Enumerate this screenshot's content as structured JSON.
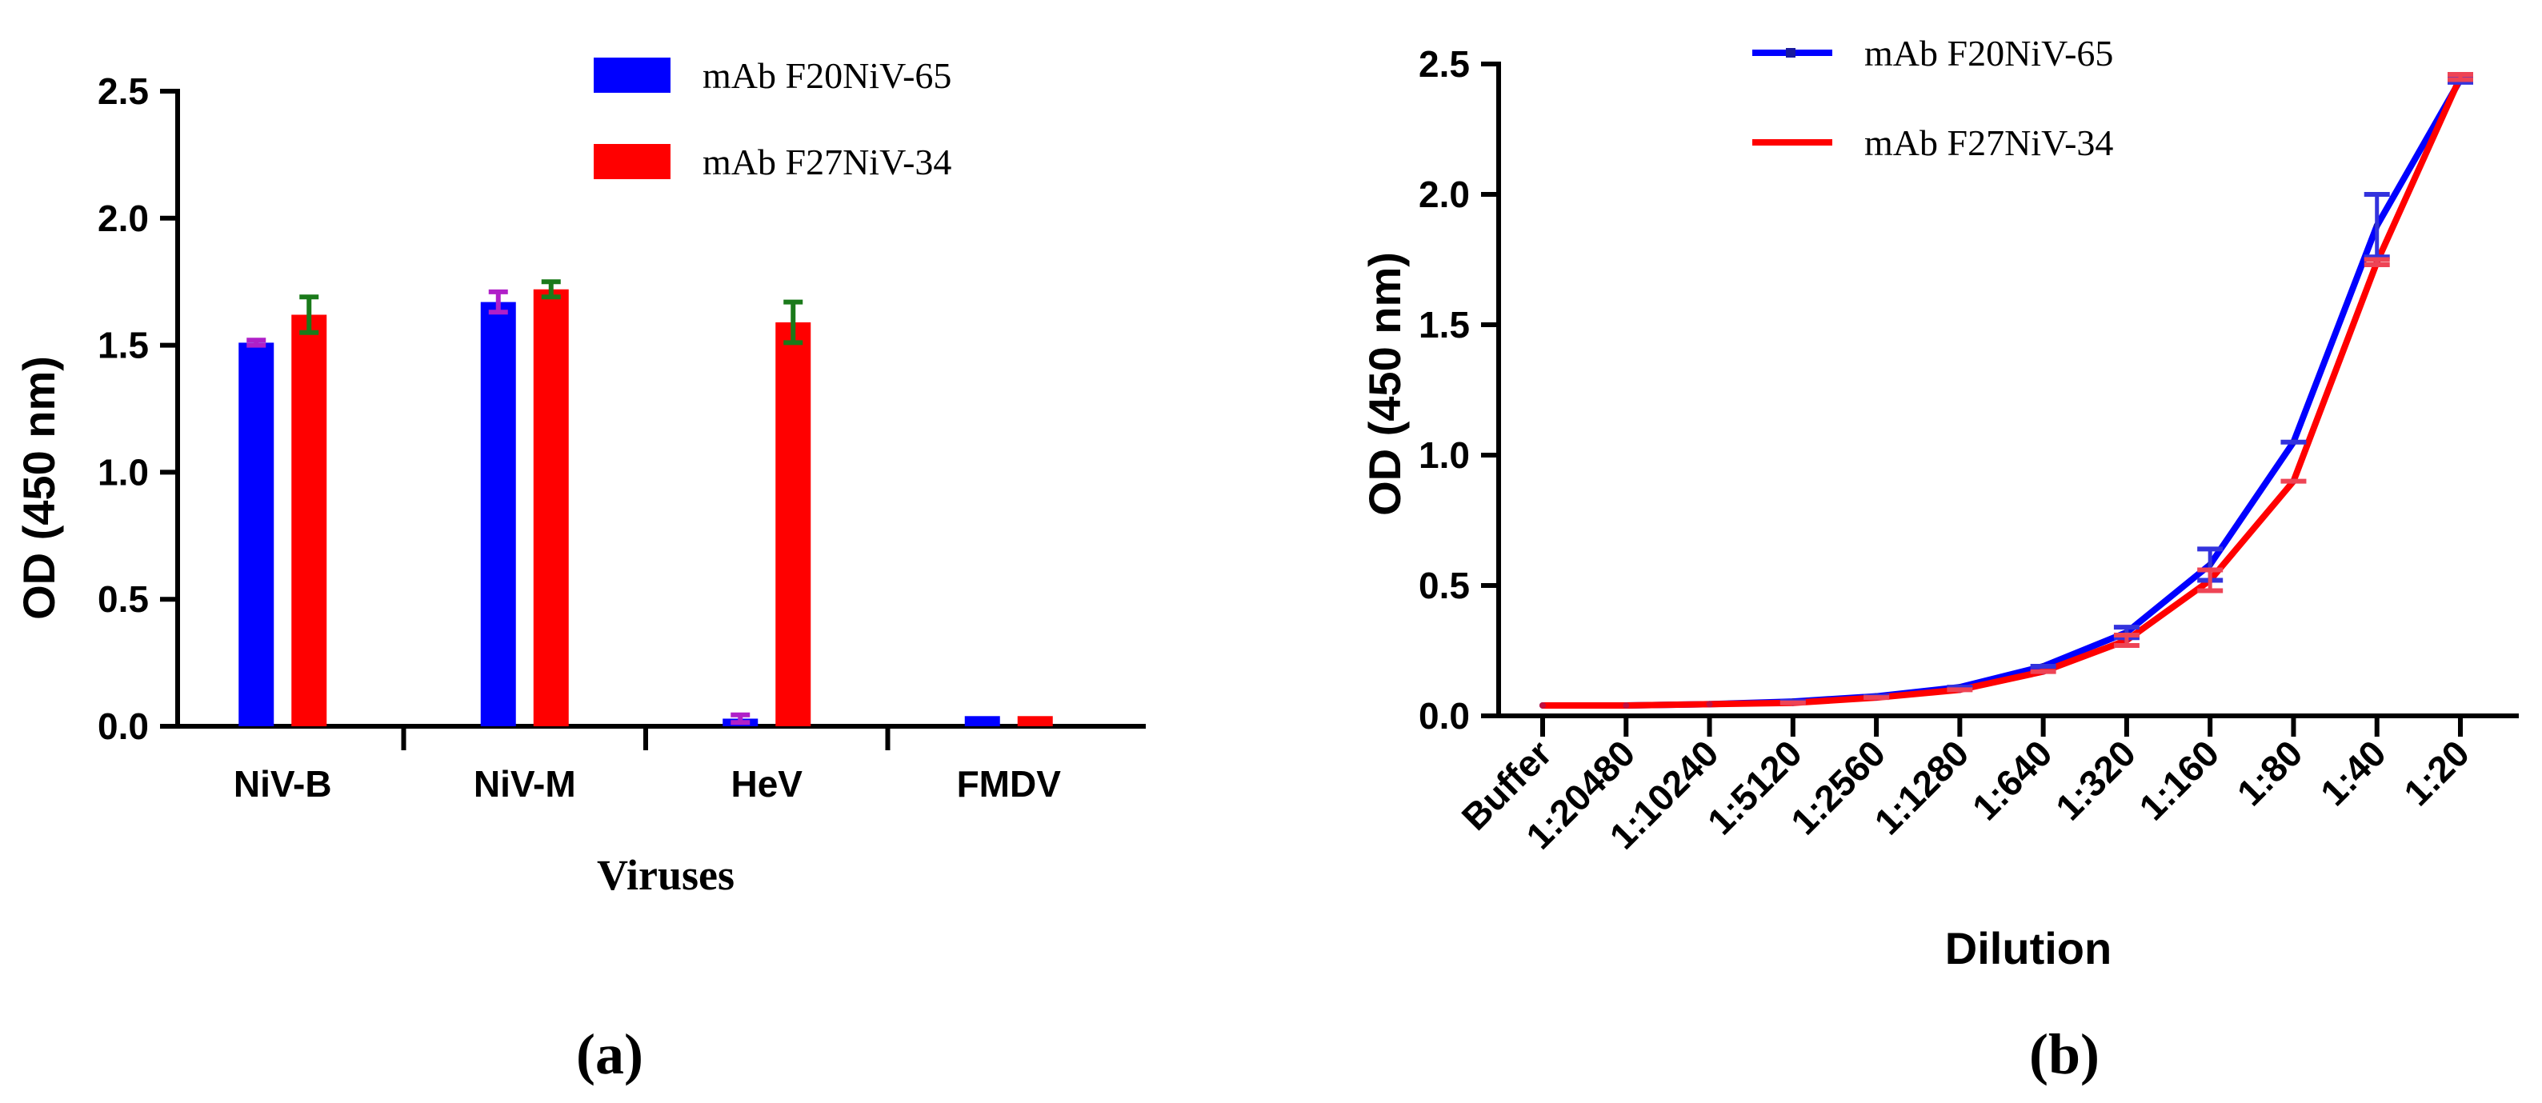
{
  "colors": {
    "series_1": "#0000ff",
    "series_2": "#ff0000",
    "errorbar_1": "#b020c8",
    "errorbar_2": "#1a7a1a",
    "line_marker_1": "#3333dd",
    "line_marker_2": "#ee4455"
  },
  "chart_data": [
    {
      "type": "bar",
      "panel_label": "(a)",
      "xlabel": "Viruses",
      "ylabel": "OD (450 nm)",
      "ylim": [
        0,
        2.5
      ],
      "yticks": [
        "0.0",
        "0.5",
        "1.0",
        "1.5",
        "2.0",
        "2.5"
      ],
      "categories": [
        "NiV-B",
        "NiV-M",
        "HeV",
        "FMDV"
      ],
      "legend_position": "top-right",
      "series": [
        {
          "name": "mAb F20NiV-65",
          "values": [
            1.51,
            1.67,
            0.03,
            0.04
          ],
          "errors": [
            0.01,
            0.04,
            0.015,
            0.0
          ]
        },
        {
          "name": "mAb F27NiV-34",
          "values": [
            1.62,
            1.72,
            1.59,
            0.04
          ],
          "errors": [
            0.07,
            0.03,
            0.08,
            0.0
          ]
        }
      ]
    },
    {
      "type": "line",
      "panel_label": "(b)",
      "xlabel": "Dilution",
      "ylabel": "OD (450 nm)",
      "ylim": [
        0,
        2.5
      ],
      "yticks": [
        "0.0",
        "0.5",
        "1.0",
        "1.5",
        "2.0",
        "2.5"
      ],
      "categories": [
        "Buffer",
        "1:20480",
        "1:10240",
        "1:5120",
        "1:2560",
        "1:1280",
        "1:640",
        "1:320",
        "1:160",
        "1:80",
        "1:40",
        "1:20"
      ],
      "legend_position": "top-center",
      "series": [
        {
          "name": "mAb F20NiV-65",
          "values": [
            0.04,
            0.04,
            0.045,
            0.055,
            0.075,
            0.11,
            0.19,
            0.32,
            0.58,
            1.05,
            1.88,
            2.44
          ],
          "errors": [
            0.0,
            0.0,
            0.0,
            0.0,
            0.0,
            0.0,
            0.0,
            0.02,
            0.06,
            0.0,
            0.12,
            0.01
          ]
        },
        {
          "name": "mAb F27NiV-34",
          "values": [
            0.04,
            0.04,
            0.045,
            0.05,
            0.07,
            0.1,
            0.17,
            0.29,
            0.52,
            0.9,
            1.74,
            2.45
          ],
          "errors": [
            0.0,
            0.0,
            0.0,
            0.0,
            0.0,
            0.0,
            0.0,
            0.02,
            0.04,
            0.0,
            0.01,
            0.01
          ]
        }
      ]
    }
  ]
}
